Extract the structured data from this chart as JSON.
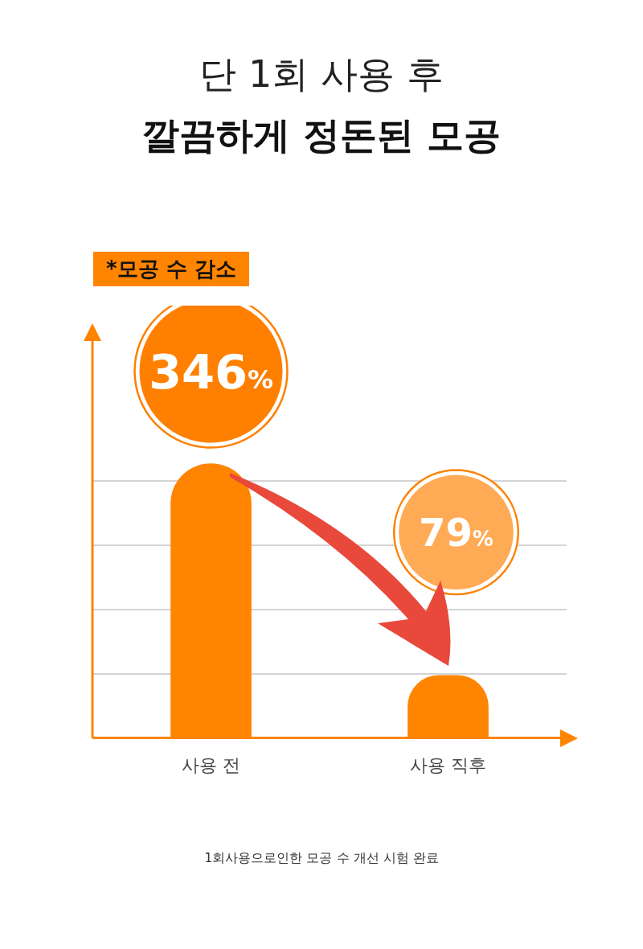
{
  "chart_data": {
    "type": "bar",
    "title": "단 1회 사용 후",
    "subtitle": "깔끔하게 정돈된 모공",
    "categories": [
      "사용 전",
      "사용 직후"
    ],
    "values": [
      346,
      79
    ],
    "colors": [
      "#ff8400",
      "#ff8400"
    ],
    "value_labels": [
      "346%",
      "79%"
    ],
    "grid": "y",
    "annotations": [
      "*모공 수 감소",
      "1회사용으로인한 모공 수 개선 시험 완료"
    ]
  }
}
